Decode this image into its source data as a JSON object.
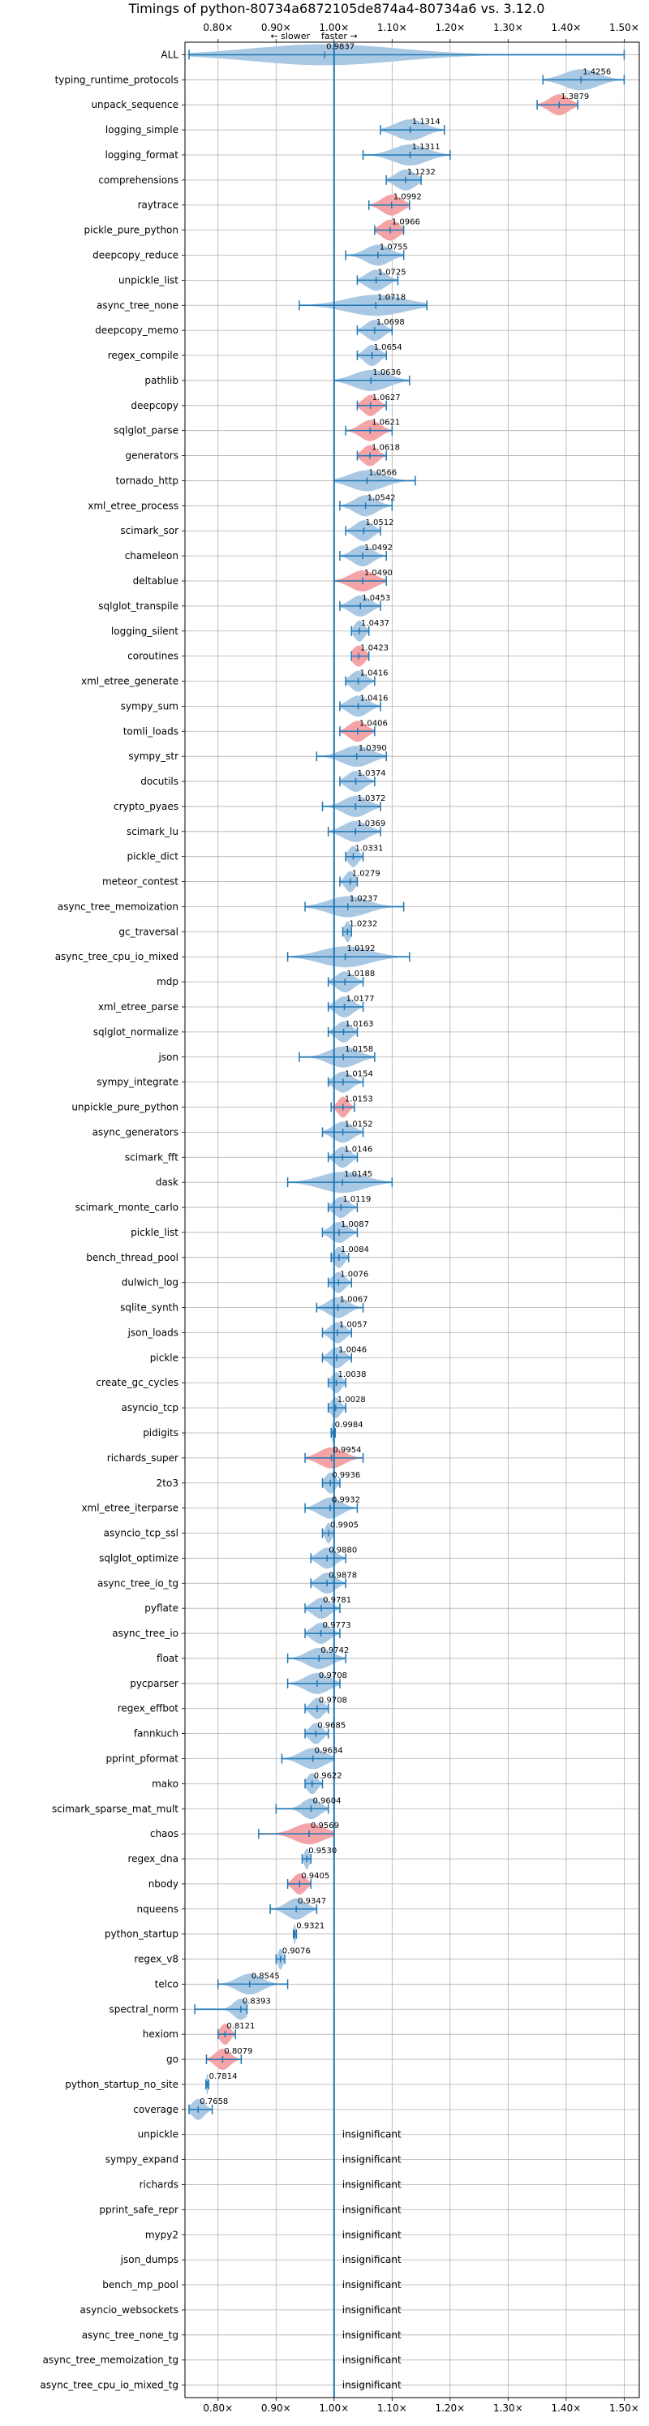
{
  "chart_data": {
    "type": "violin",
    "title": "Timings of python-80734a6872105de874a4-80734a6 vs. 3.12.0",
    "direction": {
      "slower": "← slower",
      "faster": "faster →"
    },
    "x_ticks": [
      {
        "v": 0.8,
        "label": "0.80×"
      },
      {
        "v": 0.9,
        "label": "0.90×"
      },
      {
        "v": 1.0,
        "label": "1.00×"
      },
      {
        "v": 1.1,
        "label": "1.10×"
      },
      {
        "v": 1.2,
        "label": "1.20×"
      },
      {
        "v": 1.3,
        "label": "1.30×"
      },
      {
        "v": 1.4,
        "label": "1.40×"
      },
      {
        "v": 1.5,
        "label": "1.50×"
      }
    ],
    "xlim": [
      0.743,
      1.526
    ],
    "insignificant_label": "insignificant",
    "benchmarks": [
      {
        "name": "ALL",
        "value": 0.9837,
        "w": [
          0.75,
          1.5
        ],
        "s": 0.3
      },
      {
        "name": "typing_runtime_protocols",
        "value": 1.4256,
        "w": [
          1.36,
          1.5
        ],
        "s": 0.07
      },
      {
        "name": "unpack_sequence",
        "value": 1.3879,
        "w": [
          1.35,
          1.42
        ],
        "s": 0.04,
        "hl": true
      },
      {
        "name": "logging_simple",
        "value": 1.1314,
        "w": [
          1.08,
          1.19
        ],
        "s": 0.06
      },
      {
        "name": "logging_format",
        "value": 1.1311,
        "w": [
          1.05,
          1.2
        ],
        "s": 0.07
      },
      {
        "name": "comprehensions",
        "value": 1.1232,
        "w": [
          1.09,
          1.15
        ],
        "s": 0.04
      },
      {
        "name": "raytrace",
        "value": 1.0992,
        "w": [
          1.06,
          1.13
        ],
        "s": 0.04,
        "hl": true
      },
      {
        "name": "pickle_pure_python",
        "value": 1.0966,
        "w": [
          1.07,
          1.12
        ],
        "s": 0.035,
        "hl": true
      },
      {
        "name": "deepcopy_reduce",
        "value": 1.0755,
        "w": [
          1.02,
          1.12
        ],
        "s": 0.05
      },
      {
        "name": "unpickle_list",
        "value": 1.0725,
        "w": [
          1.04,
          1.11
        ],
        "s": 0.04
      },
      {
        "name": "async_tree_none",
        "value": 1.0718,
        "w": [
          0.94,
          1.16
        ],
        "s": 0.12
      },
      {
        "name": "deepcopy_memo",
        "value": 1.0698,
        "w": [
          1.04,
          1.1
        ],
        "s": 0.035
      },
      {
        "name": "regex_compile",
        "value": 1.0654,
        "w": [
          1.04,
          1.09
        ],
        "s": 0.03
      },
      {
        "name": "pathlib",
        "value": 1.0636,
        "w": [
          1.0,
          1.13
        ],
        "s": 0.07
      },
      {
        "name": "deepcopy",
        "value": 1.0627,
        "w": [
          1.04,
          1.09
        ],
        "s": 0.03,
        "hl": true
      },
      {
        "name": "sqlglot_parse",
        "value": 1.0621,
        "w": [
          1.02,
          1.1
        ],
        "s": 0.04,
        "hl": true
      },
      {
        "name": "generators",
        "value": 1.0618,
        "w": [
          1.04,
          1.09
        ],
        "s": 0.03,
        "hl": true
      },
      {
        "name": "tornado_http",
        "value": 1.0566,
        "w": [
          1.0,
          1.14
        ],
        "s": 0.07
      },
      {
        "name": "xml_etree_process",
        "value": 1.0542,
        "w": [
          1.01,
          1.1
        ],
        "s": 0.045
      },
      {
        "name": "scimark_sor",
        "value": 1.0512,
        "w": [
          1.02,
          1.08
        ],
        "s": 0.035
      },
      {
        "name": "chameleon",
        "value": 1.0492,
        "w": [
          1.01,
          1.09
        ],
        "s": 0.04
      },
      {
        "name": "deltablue",
        "value": 1.049,
        "w": [
          1.0,
          1.09
        ],
        "s": 0.05,
        "hl": true
      },
      {
        "name": "sqlglot_transpile",
        "value": 1.0453,
        "w": [
          1.01,
          1.08
        ],
        "s": 0.04
      },
      {
        "name": "logging_silent",
        "value": 1.0437,
        "w": [
          1.03,
          1.06
        ],
        "s": 0.02
      },
      {
        "name": "coroutines",
        "value": 1.0423,
        "w": [
          1.03,
          1.06
        ],
        "s": 0.025,
        "hl": true
      },
      {
        "name": "xml_etree_generate",
        "value": 1.0416,
        "w": [
          1.02,
          1.07
        ],
        "s": 0.03
      },
      {
        "name": "sympy_sum",
        "value": 1.0416,
        "w": [
          1.01,
          1.08
        ],
        "s": 0.04
      },
      {
        "name": "tomli_loads",
        "value": 1.0406,
        "w": [
          1.01,
          1.07
        ],
        "s": 0.035,
        "hl": true
      },
      {
        "name": "sympy_str",
        "value": 1.039,
        "w": [
          0.97,
          1.09
        ],
        "s": 0.06
      },
      {
        "name": "docutils",
        "value": 1.0374,
        "w": [
          1.01,
          1.07
        ],
        "s": 0.035
      },
      {
        "name": "crypto_pyaes",
        "value": 1.0372,
        "w": [
          0.98,
          1.08
        ],
        "s": 0.05
      },
      {
        "name": "scimark_lu",
        "value": 1.0369,
        "w": [
          0.99,
          1.08
        ],
        "s": 0.05
      },
      {
        "name": "pickle_dict",
        "value": 1.0331,
        "w": [
          1.02,
          1.05
        ],
        "s": 0.02
      },
      {
        "name": "meteor_contest",
        "value": 1.0279,
        "w": [
          1.01,
          1.04
        ],
        "s": 0.02
      },
      {
        "name": "async_tree_memoization",
        "value": 1.0237,
        "w": [
          0.95,
          1.12
        ],
        "s": 0.08
      },
      {
        "name": "gc_traversal",
        "value": 1.0232,
        "w": [
          1.015,
          1.03
        ],
        "s": 0.012
      },
      {
        "name": "async_tree_cpu_io_mixed",
        "value": 1.0192,
        "w": [
          0.92,
          1.13
        ],
        "s": 0.1
      },
      {
        "name": "mdp",
        "value": 1.0188,
        "w": [
          0.99,
          1.05
        ],
        "s": 0.035
      },
      {
        "name": "xml_etree_parse",
        "value": 1.0177,
        "w": [
          0.99,
          1.05
        ],
        "s": 0.035
      },
      {
        "name": "sqlglot_normalize",
        "value": 1.0163,
        "w": [
          0.99,
          1.04
        ],
        "s": 0.03
      },
      {
        "name": "json",
        "value": 1.0158,
        "w": [
          0.94,
          1.07
        ],
        "s": 0.06
      },
      {
        "name": "sympy_integrate",
        "value": 1.0154,
        "w": [
          0.99,
          1.05
        ],
        "s": 0.035
      },
      {
        "name": "unpickle_pure_python",
        "value": 1.0153,
        "w": [
          0.995,
          1.035
        ],
        "s": 0.02,
        "hl": true
      },
      {
        "name": "async_generators",
        "value": 1.0152,
        "w": [
          0.98,
          1.05
        ],
        "s": 0.04
      },
      {
        "name": "scimark_fft",
        "value": 1.0146,
        "w": [
          0.99,
          1.04
        ],
        "s": 0.03
      },
      {
        "name": "dask",
        "value": 1.0145,
        "w": [
          0.92,
          1.1
        ],
        "s": 0.09
      },
      {
        "name": "scimark_monte_carlo",
        "value": 1.0119,
        "w": [
          0.99,
          1.04
        ],
        "s": 0.03
      },
      {
        "name": "pickle_list",
        "value": 1.0087,
        "w": [
          0.98,
          1.04
        ],
        "s": 0.035
      },
      {
        "name": "bench_thread_pool",
        "value": 1.0084,
        "w": [
          0.995,
          1.025
        ],
        "s": 0.02
      },
      {
        "name": "dulwich_log",
        "value": 1.0076,
        "w": [
          0.99,
          1.03
        ],
        "s": 0.025
      },
      {
        "name": "sqlite_synth",
        "value": 1.0067,
        "w": [
          0.97,
          1.05
        ],
        "s": 0.04
      },
      {
        "name": "json_loads",
        "value": 1.0057,
        "w": [
          0.98,
          1.03
        ],
        "s": 0.03
      },
      {
        "name": "pickle",
        "value": 1.0046,
        "w": [
          0.98,
          1.03
        ],
        "s": 0.03
      },
      {
        "name": "create_gc_cycles",
        "value": 1.0038,
        "w": [
          0.99,
          1.02
        ],
        "s": 0.02
      },
      {
        "name": "asyncio_tcp",
        "value": 1.0028,
        "w": [
          0.99,
          1.02
        ],
        "s": 0.02
      },
      {
        "name": "pidigits",
        "value": 0.9984,
        "w": [
          0.995,
          1.002
        ],
        "s": 0.005
      },
      {
        "name": "richards_super",
        "value": 0.9954,
        "w": [
          0.95,
          1.05
        ],
        "s": 0.05,
        "hl": true
      },
      {
        "name": "2to3",
        "value": 0.9936,
        "w": [
          0.98,
          1.01
        ],
        "s": 0.02
      },
      {
        "name": "xml_etree_iterparse",
        "value": 0.9932,
        "w": [
          0.95,
          1.04
        ],
        "s": 0.045
      },
      {
        "name": "asyncio_tcp_ssl",
        "value": 0.9905,
        "w": [
          0.98,
          1.0
        ],
        "s": 0.012
      },
      {
        "name": "sqlglot_optimize",
        "value": 0.988,
        "w": [
          0.96,
          1.02
        ],
        "s": 0.035
      },
      {
        "name": "async_tree_io_tg",
        "value": 0.9878,
        "w": [
          0.96,
          1.02
        ],
        "s": 0.035
      },
      {
        "name": "pyflate",
        "value": 0.9781,
        "w": [
          0.95,
          1.01
        ],
        "s": 0.035
      },
      {
        "name": "async_tree_io",
        "value": 0.9773,
        "w": [
          0.95,
          1.01
        ],
        "s": 0.035
      },
      {
        "name": "float",
        "value": 0.9742,
        "w": [
          0.92,
          1.02
        ],
        "s": 0.05
      },
      {
        "name": "pycparser",
        "value": 0.9708,
        "w": [
          0.92,
          1.01
        ],
        "s": 0.05
      },
      {
        "name": "regex_effbot",
        "value": 0.9708,
        "w": [
          0.95,
          0.99
        ],
        "s": 0.025
      },
      {
        "name": "fannkuch",
        "value": 0.9685,
        "w": [
          0.95,
          0.99
        ],
        "s": 0.025
      },
      {
        "name": "pprint_pformat",
        "value": 0.9634,
        "w": [
          0.91,
          1.0
        ],
        "s": 0.05
      },
      {
        "name": "mako",
        "value": 0.9622,
        "w": [
          0.95,
          0.98
        ],
        "s": 0.02
      },
      {
        "name": "scimark_sparse_mat_mult",
        "value": 0.9604,
        "w": [
          0.9,
          0.99
        ],
        "s": 0.035
      },
      {
        "name": "chaos",
        "value": 0.9569,
        "w": [
          0.87,
          1.0
        ],
        "s": 0.06,
        "hl": true
      },
      {
        "name": "regex_dna",
        "value": 0.953,
        "w": [
          0.945,
          0.96
        ],
        "s": 0.01
      },
      {
        "name": "nbody",
        "value": 0.9405,
        "w": [
          0.92,
          0.96
        ],
        "s": 0.025,
        "hl": true
      },
      {
        "name": "nqueens",
        "value": 0.9347,
        "w": [
          0.89,
          0.97
        ],
        "s": 0.04
      },
      {
        "name": "python_startup",
        "value": 0.9321,
        "w": [
          0.93,
          0.935
        ],
        "s": 0.004
      },
      {
        "name": "regex_v8",
        "value": 0.9076,
        "w": [
          0.9,
          0.915
        ],
        "s": 0.01
      },
      {
        "name": "telco",
        "value": 0.8545,
        "w": [
          0.8,
          0.92
        ],
        "s": 0.05
      },
      {
        "name": "spectral_norm",
        "value": 0.8393,
        "w": [
          0.76,
          0.85
        ],
        "s": 0.03
      },
      {
        "name": "hexiom",
        "value": 0.8121,
        "w": [
          0.8,
          0.83
        ],
        "s": 0.02,
        "hl": true
      },
      {
        "name": "go",
        "value": 0.8079,
        "w": [
          0.78,
          0.84
        ],
        "s": 0.03,
        "hl": true
      },
      {
        "name": "python_startup_no_site",
        "value": 0.7814,
        "w": [
          0.779,
          0.784
        ],
        "s": 0.004
      },
      {
        "name": "coverage",
        "value": 0.7658,
        "w": [
          0.75,
          0.79
        ],
        "s": 0.025
      },
      {
        "name": "unpickle",
        "insignificant": true
      },
      {
        "name": "sympy_expand",
        "insignificant": true
      },
      {
        "name": "richards",
        "insignificant": true
      },
      {
        "name": "pprint_safe_repr",
        "insignificant": true
      },
      {
        "name": "mypy2",
        "insignificant": true
      },
      {
        "name": "json_dumps",
        "insignificant": true
      },
      {
        "name": "bench_mp_pool",
        "insignificant": true
      },
      {
        "name": "asyncio_websockets",
        "insignificant": true
      },
      {
        "name": "async_tree_none_tg",
        "insignificant": true
      },
      {
        "name": "async_tree_memoization_tg",
        "insignificant": true
      },
      {
        "name": "async_tree_cpu_io_mixed_tg",
        "insignificant": true
      }
    ],
    "colors": {
      "violin": "#a9c8e4",
      "violin_highlight": "#f4a3a6",
      "whisker": "#1f77b4",
      "refline": "#1f77b4",
      "grid": "#b0b0b0"
    }
  }
}
